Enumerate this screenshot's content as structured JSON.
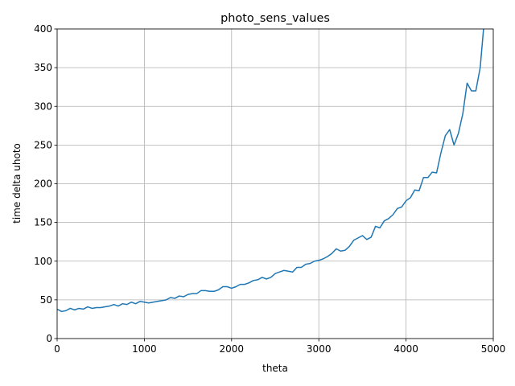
{
  "chart_data": {
    "type": "line",
    "title": "photo_sens_values",
    "xlabel": "theta",
    "ylabel": "time delta uhoto",
    "x": [
      0,
      50,
      100,
      150,
      200,
      250,
      300,
      350,
      400,
      450,
      500,
      550,
      600,
      650,
      700,
      750,
      800,
      850,
      900,
      950,
      1000,
      1050,
      1100,
      1150,
      1200,
      1250,
      1300,
      1350,
      1400,
      1450,
      1500,
      1550,
      1600,
      1650,
      1700,
      1750,
      1800,
      1850,
      1900,
      1950,
      2000,
      2050,
      2100,
      2150,
      2200,
      2250,
      2300,
      2350,
      2400,
      2450,
      2500,
      2550,
      2600,
      2650,
      2700,
      2750,
      2800,
      2850,
      2900,
      2950,
      3000,
      3050,
      3100,
      3150,
      3200,
      3250,
      3300,
      3350,
      3400,
      3450,
      3500,
      3550,
      3600,
      3650,
      3700,
      3750,
      3800,
      3850,
      3900,
      3950,
      4000,
      4050,
      4100,
      4150,
      4200,
      4250,
      4300,
      4350,
      4400,
      4450,
      4500,
      4550,
      4600,
      4650,
      4700,
      4750,
      4800,
      4850,
      4900
    ],
    "series": [
      {
        "name": "photo_sens_values",
        "color": "#1f77b4",
        "values": [
          38,
          35,
          36,
          39,
          37,
          39,
          38,
          41,
          39,
          40,
          40,
          41,
          42,
          44,
          42,
          45,
          44,
          47,
          45,
          48,
          47,
          46,
          47,
          48,
          49,
          50,
          53,
          52,
          55,
          54,
          57,
          58,
          58,
          62,
          62,
          61,
          61,
          63,
          67,
          67,
          65,
          67,
          70,
          70,
          72,
          75,
          76,
          79,
          77,
          79,
          84,
          86,
          88,
          87,
          86,
          92,
          92,
          96,
          97,
          100,
          101,
          103,
          106,
          110,
          116,
          113,
          114,
          119,
          127,
          130,
          133,
          128,
          131,
          145,
          143,
          152,
          155,
          160,
          168,
          170,
          178,
          182,
          192,
          191,
          208,
          208,
          215,
          214,
          240,
          262,
          270,
          250,
          265,
          290,
          330,
          320,
          320,
          350,
          415
        ]
      }
    ],
    "xlim": [
      0,
      5000
    ],
    "ylim": [
      0,
      400
    ],
    "xticks": [
      0,
      1000,
      2000,
      3000,
      4000,
      5000
    ],
    "yticks": [
      0,
      50,
      100,
      150,
      200,
      250,
      300,
      350,
      400
    ],
    "grid": true
  }
}
